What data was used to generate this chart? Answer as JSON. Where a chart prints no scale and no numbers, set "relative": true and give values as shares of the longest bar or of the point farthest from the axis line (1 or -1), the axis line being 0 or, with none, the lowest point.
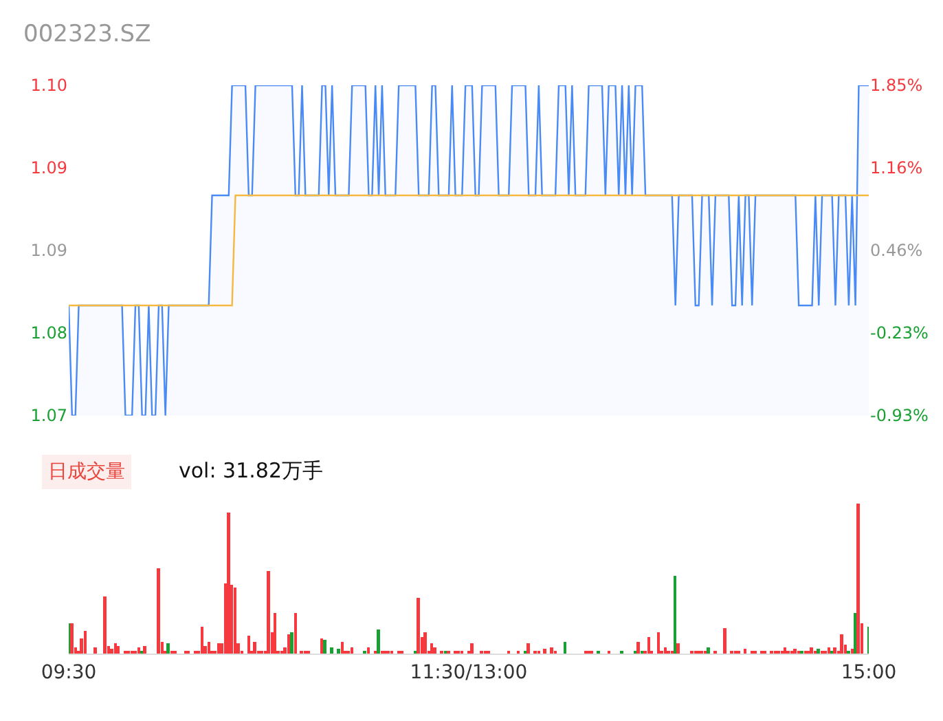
{
  "chart_data": [
    {
      "type": "area",
      "title": "002323.SZ",
      "tick_labels": "y",
      "categories": [
        null,
        null,
        null,
        null,
        null,
        null,
        null,
        null,
        null,
        null,
        null,
        null,
        null,
        null,
        null,
        null,
        null,
        null,
        null,
        null,
        null,
        null,
        null,
        null,
        null,
        null,
        null,
        null,
        null,
        null,
        null,
        null,
        null,
        null,
        null,
        null,
        null,
        null,
        null,
        null,
        null,
        null,
        null,
        null,
        null,
        null,
        null,
        null,
        null,
        null,
        null,
        null,
        null,
        null,
        null,
        null,
        null,
        null,
        null,
        null,
        null,
        null,
        null,
        null,
        null,
        null,
        null,
        null,
        null,
        null,
        null,
        null,
        null,
        null,
        null,
        null,
        null,
        null,
        null,
        null,
        null,
        null,
        null,
        null,
        null,
        null,
        null,
        null,
        null,
        null,
        null,
        null,
        null,
        null,
        null,
        null,
        null,
        null,
        null,
        null,
        null,
        null,
        null,
        null,
        null,
        null,
        null,
        null,
        null,
        null,
        null,
        null,
        null,
        null,
        null,
        null,
        null,
        null,
        null,
        null,
        null,
        null,
        null,
        null,
        null,
        null,
        null,
        null,
        null,
        null,
        null,
        null,
        null,
        null,
        null,
        null,
        null,
        null,
        null,
        null,
        null,
        null,
        null,
        null,
        null,
        null,
        null,
        null,
        null,
        null,
        null,
        null,
        null,
        null,
        null,
        null,
        null,
        null,
        null,
        null,
        null,
        null,
        null,
        null,
        null,
        null,
        null,
        null,
        null,
        null,
        null,
        null,
        null,
        null,
        null,
        null,
        null,
        null,
        null,
        null,
        null,
        null,
        null,
        null,
        null,
        null,
        null,
        null,
        null,
        null,
        null,
        null,
        null,
        null,
        null,
        null,
        null,
        null,
        null,
        null,
        null,
        null,
        null,
        null,
        null,
        null,
        null,
        null,
        null,
        null,
        null,
        null,
        null,
        null,
        null,
        null,
        null,
        null,
        null,
        null,
        null,
        null,
        null,
        null,
        null,
        null,
        null,
        null,
        null,
        null,
        null,
        null,
        null,
        null,
        null,
        null,
        null,
        null,
        null,
        null,
        null
      ],
      "ylim": [
        1.07,
        1.1
      ],
      "yticks": [
        1.07,
        {
          "value": 1.0775,
          "label": "1.08"
        },
        {
          "value": 1.085,
          "label": "1.09"
        },
        {
          "value": 1.0925,
          "label": "1.09"
        },
        {
          "value": 1.1,
          "label": "1.10"
        }
      ],
      "y2lim": [
        -0.93,
        1.85
      ],
      "y2ticks": [
        {
          "value": -0.93,
          "label": "-0.93%"
        },
        {
          "value": -0.23,
          "label": "-0.23%"
        },
        {
          "value": 0.46,
          "label": "0.46%"
        },
        {
          "value": 1.16,
          "label": "1.16%"
        },
        {
          "value": 1.85,
          "label": "1.85%"
        }
      ],
      "series": [
        {
          "type": "area",
          "color": "#4a8af4",
          "values": [
            1.08,
            1.07,
            1.07,
            1.08,
            1.08,
            1.08,
            1.08,
            1.08,
            1.08,
            1.08,
            1.08,
            1.08,
            1.08,
            1.08,
            1.08,
            1.08,
            1.08,
            1.07,
            1.07,
            1.07,
            1.08,
            1.08,
            1.07,
            1.07,
            1.08,
            1.07,
            1.07,
            1.08,
            1.08,
            1.07,
            1.08,
            1.08,
            1.08,
            1.08,
            1.08,
            1.08,
            1.08,
            1.08,
            1.08,
            1.08,
            1.08,
            1.08,
            1.08,
            1.09,
            1.09,
            1.09,
            1.09,
            1.09,
            1.09,
            1.1,
            1.1,
            1.1,
            1.1,
            1.1,
            1.09,
            1.09,
            1.1,
            1.1,
            1.1,
            1.1,
            1.1,
            1.1,
            1.1,
            1.1,
            1.1,
            1.1,
            1.1,
            1.1,
            1.09,
            1.09,
            1.1,
            1.09,
            1.09,
            1.09,
            1.09,
            1.09,
            1.1,
            1.1,
            1.09,
            1.1,
            1.09,
            1.09,
            1.09,
            1.09,
            1.09,
            1.1,
            1.1,
            1.1,
            1.1,
            1.1,
            1.09,
            1.09,
            1.1,
            1.09,
            1.1,
            1.09,
            1.09,
            1.09,
            1.09,
            1.1,
            1.1,
            1.1,
            1.1,
            1.1,
            1.1,
            1.09,
            1.09,
            1.09,
            1.09,
            1.1,
            1.1,
            1.09,
            1.09,
            1.09,
            1.09,
            1.1,
            1.09,
            1.09,
            1.09,
            1.1,
            1.1,
            1.1,
            1.09,
            1.09,
            1.1,
            1.1,
            1.1,
            1.1,
            1.1,
            1.09,
            1.09,
            1.09,
            1.09,
            1.1,
            1.1,
            1.1,
            1.1,
            1.1,
            1.09,
            1.09,
            1.09,
            1.1,
            1.09,
            1.09,
            1.09,
            1.09,
            1.09,
            1.1,
            1.1,
            1.1,
            1.09,
            1.1,
            1.09,
            1.09,
            1.09,
            1.09,
            1.1,
            1.1,
            1.1,
            1.1,
            1.1,
            1.09,
            1.1,
            1.1,
            1.1,
            1.09,
            1.1,
            1.09,
            1.1,
            1.09,
            1.1,
            1.1,
            1.1,
            1.09,
            1.09,
            1.09,
            1.09,
            1.09,
            1.09,
            1.09,
            1.09,
            1.09,
            1.08,
            1.09,
            1.09,
            1.09,
            1.09,
            1.09,
            1.08,
            1.08,
            1.09,
            1.09,
            1.09,
            1.08,
            1.09,
            1.09,
            1.09,
            1.09,
            1.09,
            1.08,
            1.08,
            1.09,
            1.08,
            1.09,
            1.09,
            1.08,
            1.09,
            1.09,
            1.09,
            1.09,
            1.09,
            1.09,
            1.09,
            1.09,
            1.09,
            1.09,
            1.09,
            1.09,
            1.09,
            1.08,
            1.08,
            1.08,
            1.08,
            1.08,
            1.09,
            1.08,
            1.09,
            1.09,
            1.09,
            1.09,
            1.08,
            1.09,
            1.09,
            1.09,
            1.08,
            1.09,
            1.08,
            1.1,
            1.1,
            1.1,
            1.1
          ]
        },
        {
          "type": "line",
          "color": "#f5b940",
          "values": [
            1.08,
            1.08,
            1.08,
            1.08,
            1.08,
            1.08,
            1.08,
            1.08,
            1.08,
            1.08,
            1.08,
            1.08,
            1.08,
            1.08,
            1.08,
            1.08,
            1.08,
            1.08,
            1.08,
            1.08,
            1.08,
            1.08,
            1.08,
            1.08,
            1.08,
            1.08,
            1.08,
            1.08,
            1.08,
            1.08,
            1.08,
            1.08,
            1.08,
            1.08,
            1.08,
            1.08,
            1.08,
            1.08,
            1.08,
            1.08,
            1.08,
            1.08,
            1.08,
            1.08,
            1.08,
            1.08,
            1.08,
            1.08,
            1.08,
            1.08,
            1.09,
            1.09,
            1.09,
            1.09,
            1.09,
            1.09,
            1.09,
            1.09,
            1.09,
            1.09,
            1.09,
            1.09,
            1.09,
            1.09,
            1.09,
            1.09,
            1.09,
            1.09,
            1.09,
            1.09,
            1.09,
            1.09,
            1.09,
            1.09,
            1.09,
            1.09,
            1.09,
            1.09,
            1.09,
            1.09,
            1.09,
            1.09,
            1.09,
            1.09,
            1.09,
            1.09,
            1.09,
            1.09,
            1.09,
            1.09,
            1.09,
            1.09,
            1.09,
            1.09,
            1.09,
            1.09,
            1.09,
            1.09,
            1.09,
            1.09,
            1.09,
            1.09,
            1.09,
            1.09,
            1.09,
            1.09,
            1.09,
            1.09,
            1.09,
            1.09,
            1.09,
            1.09,
            1.09,
            1.09,
            1.09,
            1.09,
            1.09,
            1.09,
            1.09,
            1.09,
            1.09,
            1.09,
            1.09,
            1.09,
            1.09,
            1.09,
            1.09,
            1.09,
            1.09,
            1.09,
            1.09,
            1.09,
            1.09,
            1.09,
            1.09,
            1.09,
            1.09,
            1.09,
            1.09,
            1.09,
            1.09,
            1.09,
            1.09,
            1.09,
            1.09,
            1.09,
            1.09,
            1.09,
            1.09,
            1.09,
            1.09,
            1.09,
            1.09,
            1.09,
            1.09,
            1.09,
            1.09,
            1.09,
            1.09,
            1.09,
            1.09,
            1.09,
            1.09,
            1.09,
            1.09,
            1.09,
            1.09,
            1.09,
            1.09,
            1.09,
            1.09,
            1.09,
            1.09,
            1.09,
            1.09,
            1.09,
            1.09,
            1.09,
            1.09,
            1.09,
            1.09,
            1.09,
            1.09,
            1.09,
            1.09,
            1.09,
            1.09,
            1.09,
            1.09,
            1.09,
            1.09,
            1.09,
            1.09,
            1.09,
            1.09,
            1.09,
            1.09,
            1.09,
            1.09,
            1.09,
            1.09,
            1.09,
            1.09,
            1.09,
            1.09,
            1.09,
            1.09,
            1.09,
            1.09,
            1.09,
            1.09,
            1.09,
            1.09,
            1.09,
            1.09,
            1.09,
            1.09,
            1.09,
            1.09,
            1.09,
            1.09,
            1.09,
            1.09,
            1.09,
            1.09,
            1.09,
            1.09,
            1.09,
            1.09,
            1.09,
            1.09,
            1.09,
            1.09,
            1.09,
            1.09,
            1.09,
            1.09,
            1.09,
            1.09,
            1.09,
            1.09
          ]
        }
      ]
    },
    {
      "type": "bar",
      "title": "日成交量",
      "subtitle": "vol: 31.82万手",
      "relative": true,
      "stacked": true,
      "tick_labels": "x",
      "categories": [
        "09:30",
        null,
        null,
        null,
        null,
        null,
        null,
        null,
        null,
        null,
        null,
        null,
        null,
        null,
        null,
        null,
        null,
        null,
        null,
        null,
        null,
        null,
        null,
        null,
        null,
        null,
        null,
        null,
        null,
        null,
        null,
        null,
        null,
        null,
        null,
        null,
        null,
        null,
        null,
        null,
        null,
        null,
        null,
        null,
        null,
        null,
        null,
        null,
        null,
        null,
        null,
        null,
        null,
        null,
        null,
        null,
        null,
        null,
        null,
        null,
        null,
        null,
        null,
        null,
        null,
        null,
        null,
        null,
        null,
        null,
        null,
        null,
        null,
        null,
        null,
        null,
        null,
        null,
        null,
        null,
        null,
        null,
        null,
        null,
        null,
        null,
        null,
        null,
        null,
        null,
        null,
        null,
        null,
        null,
        null,
        null,
        null,
        null,
        null,
        null,
        null,
        null,
        null,
        null,
        null,
        null,
        null,
        null,
        null,
        null,
        null,
        null,
        null,
        null,
        null,
        null,
        null,
        null,
        null,
        null,
        "11:30/13:00",
        null,
        null,
        null,
        null,
        null,
        null,
        null,
        null,
        null,
        null,
        null,
        null,
        null,
        null,
        null,
        null,
        null,
        null,
        null,
        null,
        null,
        null,
        null,
        null,
        null,
        null,
        null,
        null,
        null,
        null,
        null,
        null,
        null,
        null,
        null,
        null,
        null,
        null,
        null,
        null,
        null,
        null,
        null,
        null,
        null,
        null,
        null,
        null,
        null,
        null,
        null,
        null,
        null,
        null,
        null,
        null,
        null,
        null,
        null,
        null,
        null,
        null,
        null,
        null,
        null,
        null,
        null,
        null,
        null,
        null,
        null,
        null,
        null,
        null,
        null,
        null,
        null,
        null,
        null,
        null,
        null,
        null,
        null,
        null,
        null,
        null,
        null,
        null,
        null,
        null,
        null,
        null,
        null,
        null,
        null,
        null,
        null,
        null,
        null,
        null,
        null,
        null,
        null,
        null,
        null,
        null,
        null,
        null,
        null,
        null,
        null,
        null,
        null,
        null,
        null,
        null,
        null,
        null,
        null,
        "15:00"
      ],
      "series": [
        {
          "color": "#f5393e",
          "values": [
            null,
            0.2,
            0.04,
            0.02,
            0.1,
            0.15,
            null,
            null,
            0.04,
            null,
            null,
            0.38,
            0.05,
            0.03,
            0.07,
            0.05,
            null,
            0.01,
            0.01,
            0.02,
            0.02,
            0.04,
            null,
            0.05,
            null,
            null,
            null,
            0.57,
            0.08,
            0.02,
            null,
            0.02,
            0.01,
            null,
            null,
            0.01,
            0.02,
            null,
            0.02,
            0.02,
            0.18,
            0.05,
            0.08,
            0.01,
            0.01,
            0.07,
            0.07,
            0.47,
            0.94,
            0.46,
            0.44,
            0.07,
            0.01,
            null,
            0.12,
            0.01,
            0.08,
            0.01,
            0.01,
            0.02,
            0.55,
            0.14,
            0.27,
            0.02,
            0.02,
            0.04,
            0.13,
            null,
            0.27,
            null,
            0.01,
            0.01,
            0.01,
            null,
            null,
            null,
            0.1,
            null,
            null,
            null,
            null,
            null,
            0.08,
            0.02,
            0.02,
            0.04,
            null,
            null,
            null,
            null,
            0.04,
            null,
            0.01,
            null,
            0.01,
            0.01,
            0.01,
            0.01,
            null,
            0.02,
            0.01,
            null,
            null,
            null,
            null,
            0.37,
            0.11,
            0.14,
            0.01,
            0.07,
            0.04,
            null,
            0.01,
            null,
            0.01,
            null,
            0.01,
            0.02,
            0.01,
            null,
            0.01,
            0.07,
            null,
            null,
            0.02,
            0.02,
            0.02,
            null,
            null,
            null,
            null,
            null,
            0.01,
            null,
            null,
            0.02,
            null,
            null,
            0.07,
            null,
            0.01,
            0.01,
            null,
            0.03,
            null,
            0.04,
            0.01,
            null,
            null,
            null,
            null,
            null,
            null,
            null,
            null,
            0.01,
            0.02,
            0.01,
            null,
            null,
            null,
            null,
            0.01,
            null,
            null,
            null,
            null,
            null,
            null,
            null,
            null,
            0.08,
            null,
            0.02,
            0.11,
            0.01,
            null,
            0.14,
            0.01,
            0.04,
            0.01,
            0.02,
            null,
            0.07,
            null,
            null,
            null,
            0.01,
            0.01,
            0.01,
            0.02,
            0.01,
            null,
            null,
            0.01,
            null,
            null,
            0.17,
            null,
            0.01,
            0.01,
            0.01,
            null,
            0.03,
            null,
            0.01,
            0.01,
            null,
            0.02,
            0.01,
            null,
            0.02,
            0.02,
            0.02,
            0.01,
            0.04,
            0.02,
            0.02,
            0.03,
            0.02,
            null,
            0.01,
            0.02,
            0.04,
            0.02,
            null,
            0.01,
            0.02,
            0.04,
            null,
            0.04,
            0.02,
            0.13,
            0.06,
            null,
            0.03,
            null,
            1,
            0.2,
            null,
            null
          ]
        },
        {
          "color": "#1aa033",
          "values": [
            0.2,
            null,
            null,
            null,
            null,
            null,
            null,
            null,
            null,
            null,
            null,
            null,
            null,
            null,
            null,
            null,
            null,
            null,
            null,
            null,
            null,
            null,
            0.02,
            null,
            null,
            null,
            null,
            null,
            null,
            null,
            0.07,
            null,
            null,
            null,
            null,
            null,
            null,
            null,
            null,
            null,
            null,
            null,
            null,
            null,
            null,
            null,
            null,
            null,
            null,
            null,
            null,
            null,
            null,
            null,
            null,
            null,
            null,
            null,
            null,
            null,
            null,
            null,
            null,
            null,
            null,
            null,
            null,
            0.14,
            null,
            null,
            null,
            null,
            null,
            null,
            null,
            null,
            null,
            0.09,
            null,
            0.04,
            null,
            0.03,
            null,
            null,
            null,
            null,
            null,
            null,
            null,
            0.02,
            null,
            null,
            null,
            0.16,
            null,
            null,
            null,
            null,
            null,
            null,
            null,
            null,
            null,
            null,
            0.02,
            null,
            null,
            null,
            null,
            null,
            null,
            null,
            null,
            0.01,
            null,
            null,
            null,
            null,
            null,
            null,
            null,
            null,
            null,
            null,
            null,
            null,
            null,
            null,
            null,
            null,
            null,
            null,
            null,
            null,
            null,
            null,
            null,
            0.02,
            null,
            null,
            null,
            null,
            null,
            null,
            null,
            null,
            null,
            null,
            null,
            0.08,
            null,
            null,
            null,
            null,
            null,
            null,
            null,
            null,
            null,
            0.02,
            null,
            null,
            null,
            null,
            null,
            null,
            0.01,
            null,
            null,
            null,
            0.01,
            null,
            0.01,
            null,
            null,
            null,
            null,
            null,
            null,
            null,
            null,
            null,
            0.52,
            null,
            null,
            null,
            null,
            null,
            null,
            null,
            null,
            null,
            0.04,
            null,
            null,
            null,
            null,
            null,
            null,
            null,
            null,
            null,
            null,
            null,
            null,
            null,
            null,
            null,
            null,
            null,
            null,
            null,
            null,
            null,
            null,
            null,
            null,
            null,
            null,
            null,
            0.01,
            null,
            null,
            null,
            null,
            0.03,
            null,
            null,
            null,
            0.02,
            null,
            null,
            null,
            null,
            0.02,
            null,
            0.27,
            null,
            null,
            null,
            0.18
          ]
        }
      ]
    }
  ]
}
